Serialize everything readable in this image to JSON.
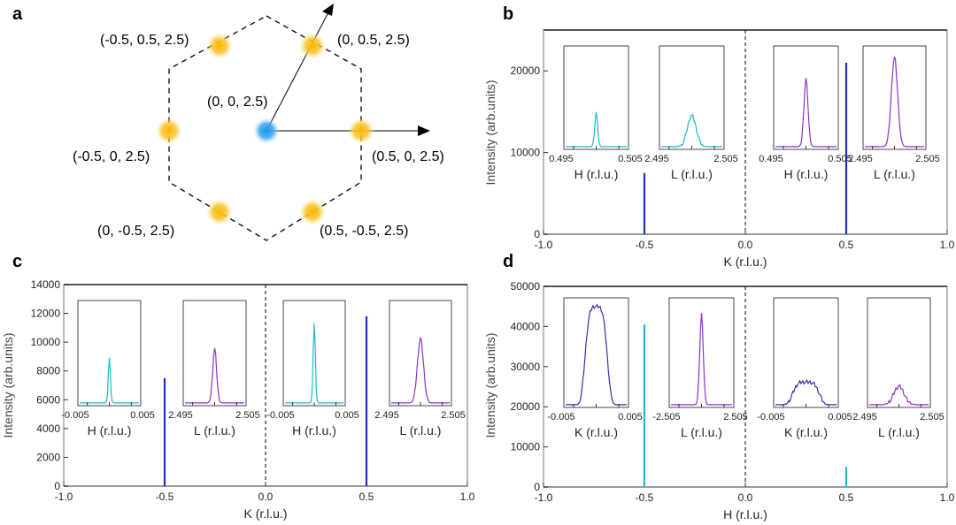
{
  "figure": {
    "panel_a": {
      "letter": "a",
      "points": [
        {
          "label": "(-0.5, 0.5, 2.5)",
          "kind": "yellow"
        },
        {
          "label": "(0, 0.5, 2.5)",
          "kind": "yellow"
        },
        {
          "label": "(-0.5, 0, 2.5)",
          "kind": "yellow"
        },
        {
          "label": "(0, 0, 2.5)",
          "kind": "blue"
        },
        {
          "label": "(0.5, 0, 2.5)",
          "kind": "yellow"
        },
        {
          "label": "(0, -0.5, 2.5)",
          "kind": "yellow"
        },
        {
          "label": "(0.5, -0.5, 2.5)",
          "kind": "yellow"
        }
      ],
      "colors": {
        "yellow": "#f7c530",
        "blue": "#39a7ee",
        "hexagon": "#000000"
      }
    }
  },
  "chart_data": [
    {
      "panel": "b",
      "type": "line",
      "xlabel": "K (r.l.u.)",
      "ylabel": "Intensity (arb.units)",
      "xlim": [
        -1.0,
        1.0
      ],
      "ylim": [
        0,
        25000
      ],
      "xticks": [
        "-1.0",
        "-0.5",
        "0.0",
        "0.5",
        "1.0"
      ],
      "yticks": [
        0,
        10000,
        20000
      ],
      "ytick_labels": [
        "0",
        "10000",
        "20000"
      ],
      "color": "#1f2fbf",
      "peaks": [
        {
          "x": -0.5,
          "y": 7500
        },
        {
          "x": 0.5,
          "y": 21000
        }
      ],
      "insets": [
        {
          "xlabel": "H (r.l.u.)",
          "ticks": [
            "0.495",
            "0.505"
          ],
          "color": "#1fb8cc",
          "peak_pos": 0.5,
          "peak_height": 0.35,
          "width": 0.05
        },
        {
          "xlabel": "L (r.l.u.)",
          "ticks": [
            "2.495",
            "2.505"
          ],
          "color": "#1fb8cc",
          "peak_pos": 0.5,
          "peak_height": 0.32,
          "width": 0.15
        },
        {
          "xlabel": "H (r.l.u.)",
          "ticks": [
            "0.495",
            "0.505"
          ],
          "color": "#8a35c7",
          "peak_pos": 0.5,
          "peak_height": 0.7,
          "width": 0.07
        },
        {
          "xlabel": "L (r.l.u.)",
          "ticks": [
            "2.495",
            "2.505"
          ],
          "color": "#8a35c7",
          "peak_pos": 0.5,
          "peak_height": 0.92,
          "width": 0.11
        }
      ]
    },
    {
      "panel": "c",
      "type": "line",
      "xlabel": "K (r.l.u.)",
      "ylabel": "Intensity (arb.units)",
      "xlim": [
        -1.0,
        1.0
      ],
      "ylim": [
        0,
        14000
      ],
      "xticks": [
        "-1.0",
        "-0.5",
        "0.0",
        "0.5",
        "1.0"
      ],
      "yticks": [
        0,
        2000,
        4000,
        6000,
        8000,
        10000,
        12000,
        14000
      ],
      "ytick_labels": [
        "0",
        "2000",
        "4000",
        "6000",
        "8000",
        "10000",
        "12000",
        "14000"
      ],
      "color": "#1f2fbf",
      "peaks": [
        {
          "x": -0.5,
          "y": 7500
        },
        {
          "x": 0.5,
          "y": 11800
        }
      ],
      "insets": [
        {
          "xlabel": "H (r.l.u.)",
          "ticks": [
            "-0.005",
            "0.005"
          ],
          "color": "#1fb8cc",
          "peak_pos": 0.5,
          "peak_height": 0.45,
          "width": 0.04
        },
        {
          "xlabel": "L (r.l.u.)",
          "ticks": [
            "2.495",
            "2.505"
          ],
          "color": "#8a35c7",
          "peak_pos": 0.5,
          "peak_height": 0.55,
          "width": 0.07
        },
        {
          "xlabel": "H (r.l.u.)",
          "ticks": [
            "-0.005",
            "0.005"
          ],
          "color": "#1fb8cc",
          "peak_pos": 0.5,
          "peak_height": 0.8,
          "width": 0.04
        },
        {
          "xlabel": "L (r.l.u.)",
          "ticks": [
            "2.495",
            "2.505"
          ],
          "color": "#8a35c7",
          "peak_pos": 0.5,
          "peak_height": 0.65,
          "width": 0.11
        }
      ]
    },
    {
      "panel": "d",
      "type": "line",
      "xlabel": "H (r.l.u.)",
      "ylabel": "Intensity (arb.units)",
      "xlim": [
        -1.0,
        1.0
      ],
      "ylim": [
        0,
        50000
      ],
      "xticks": [
        "-1.0",
        "-0.5",
        "0.0",
        "0.5",
        "1.0"
      ],
      "yticks": [
        0,
        10000,
        20000,
        30000,
        40000,
        50000
      ],
      "ytick_labels": [
        "0",
        "10000",
        "20000",
        "30000",
        "40000",
        "50000"
      ],
      "color": "#1fb8cc",
      "peaks": [
        {
          "x": -0.5,
          "y": 40500
        },
        {
          "x": 0.5,
          "y": 5000
        }
      ],
      "insets": [
        {
          "xlabel": "K (r.l.u.)",
          "ticks": [
            "-0.005",
            "0.005"
          ],
          "color": "#3b2fa8",
          "peak_pos": 0.5,
          "peak_height": 0.95,
          "width": 0.25,
          "shape": "broad"
        },
        {
          "xlabel": "L (r.l.u.)",
          "ticks": [
            "-2.505",
            "2.505"
          ],
          "color": "#8a35c7",
          "peak_pos": 0.5,
          "peak_height": 0.88,
          "width": 0.06
        },
        {
          "xlabel": "K (r.l.u.)",
          "ticks": [
            "-0.005",
            "0.005"
          ],
          "color": "#3b2fa8",
          "peak_pos": 0.5,
          "peak_height": 0.22,
          "width": 0.3,
          "shape": "broad"
        },
        {
          "xlabel": "L (r.l.u.)",
          "ticks": [
            "2.495",
            "2.505"
          ],
          "color": "#8a35c7",
          "peak_pos": 0.5,
          "peak_height": 0.18,
          "width": 0.18
        }
      ]
    }
  ]
}
